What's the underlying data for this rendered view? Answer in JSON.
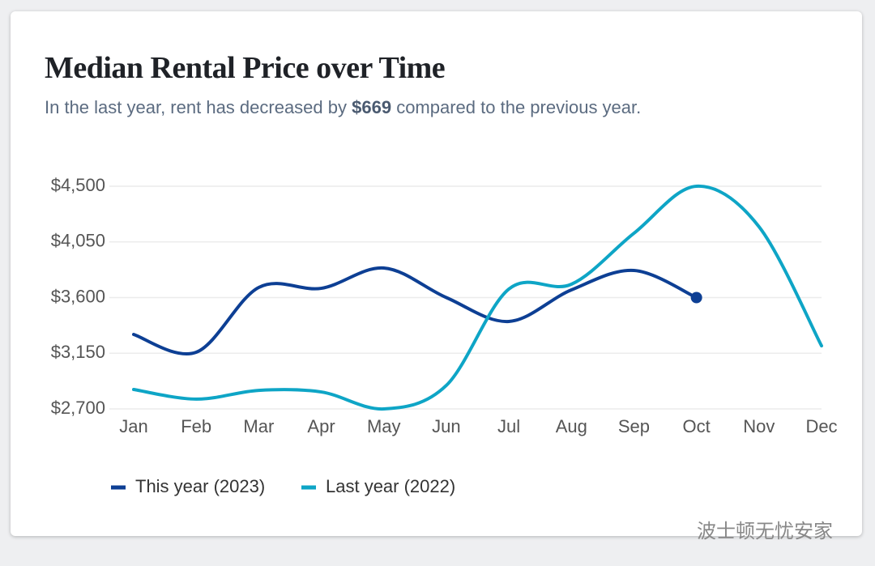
{
  "chart_data": {
    "type": "line",
    "title": "Median Rental Price over Time",
    "subtitle": [
      "In the last year, rent has decreased by ",
      "$669",
      " compared to the previous year."
    ],
    "categories": [
      "Jan",
      "Feb",
      "Mar",
      "Apr",
      "May",
      "Jun",
      "Jul",
      "Aug",
      "Sep",
      "Oct",
      "Nov",
      "Dec"
    ],
    "series": [
      {
        "name": "This year (2023)",
        "color": "#0d3f94",
        "values": [
          3302,
          3158,
          3682,
          3675,
          3839,
          3600,
          3407,
          3662,
          3819,
          3600,
          null,
          null
        ]
      },
      {
        "name": "Last year (2022)",
        "color": "#0ea5c6",
        "values": [
          2857,
          2779,
          2850,
          2837,
          2700,
          2890,
          3669,
          3708,
          4120,
          4500,
          4173,
          3210
        ]
      }
    ],
    "ylim": [
      2700,
      4500
    ],
    "yticks": [
      {
        "value": 2700,
        "label": "$2,700"
      },
      {
        "value": 3150,
        "label": "$3,150"
      },
      {
        "value": 3600,
        "label": "$3,600"
      },
      {
        "value": 4050,
        "label": "$4,050"
      },
      {
        "value": 4500,
        "label": "$4,500"
      }
    ],
    "grid": true,
    "legend": "bottom",
    "watermark": "波士顿无忧安家"
  }
}
